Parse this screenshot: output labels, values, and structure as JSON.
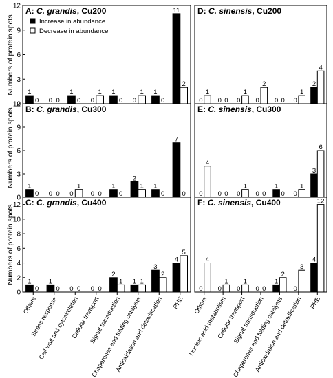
{
  "figure": {
    "ylabel": "Numbers of protein spots",
    "legend": {
      "increase": "Increase in abundance",
      "decrease": "Decrease in abundance",
      "placement": "top-left of panel A"
    },
    "colors": {
      "increase": "#000000",
      "decrease": "#ffffff",
      "axis": "#000000"
    }
  },
  "chart_data": [
    {
      "type": "bar",
      "panel": "A",
      "species": "C. grandis",
      "treatment": "Cu200",
      "categories": [
        "Others",
        "Stress response",
        "Cell wall and cytoskeleton",
        "Cellular transport",
        "Signal transduction",
        "Chaperones and folding catalysts",
        "Antioxidation and detoxification",
        "PHE"
      ],
      "series": [
        {
          "name": "Increase in abundance",
          "values": [
            1,
            0,
            1,
            0,
            1,
            0,
            1,
            11
          ]
        },
        {
          "name": "Decrease in abundance",
          "values": [
            0,
            0,
            0,
            1,
            0,
            1,
            0,
            2
          ]
        }
      ],
      "ylim": [
        0,
        12
      ],
      "yticks": [
        0,
        3,
        6,
        9,
        12
      ]
    },
    {
      "type": "bar",
      "panel": "B",
      "species": "C. grandis",
      "treatment": "Cu300",
      "categories": [
        "Others",
        "Stress response",
        "Cell wall and cytoskeleton",
        "Cellular transport",
        "Signal transduction",
        "Chaperones and folding catalysts",
        "Antioxidation and detoxification",
        "PHE"
      ],
      "series": [
        {
          "name": "Increase in abundance",
          "values": [
            1,
            0,
            0,
            0,
            1,
            2,
            1,
            7
          ]
        },
        {
          "name": "Decrease in abundance",
          "values": [
            0,
            0,
            1,
            0,
            0,
            1,
            0,
            0
          ]
        }
      ],
      "ylim": [
        0,
        12
      ],
      "yticks": [
        0,
        3,
        6,
        9,
        12
      ]
    },
    {
      "type": "bar",
      "panel": "C",
      "species": "C. grandis",
      "treatment": "Cu400",
      "categories": [
        "Others",
        "Stress response",
        "Cell wall and cytoskeleton",
        "Cellular transport",
        "Signal transduction",
        "Chaperones and folding catalysts",
        "Antioxidation and detoxification",
        "PHE"
      ],
      "series": [
        {
          "name": "Increase in abundance",
          "values": [
            1,
            1,
            0,
            0,
            2,
            1,
            3,
            4
          ]
        },
        {
          "name": "Decrease in abundance",
          "values": [
            0,
            0,
            0,
            0,
            1,
            1,
            2,
            5
          ]
        }
      ],
      "ylim": [
        0,
        13
      ],
      "yticks": [
        0,
        2,
        4,
        6,
        8,
        10,
        12
      ]
    },
    {
      "type": "bar",
      "panel": "D",
      "species": "C. sinensis",
      "treatment": "Cu200",
      "categories": [
        "Others",
        "Nucleic acid metabolism",
        "Cellular transport",
        "Signal transduction",
        "Chaperones and folding catalysts",
        "Antioxidation and detoxification",
        "PHE"
      ],
      "series": [
        {
          "name": "Increase in abundance",
          "values": [
            0,
            0,
            0,
            0,
            0,
            0,
            2
          ]
        },
        {
          "name": "Decrease in abundance",
          "values": [
            1,
            0,
            1,
            2,
            0,
            1,
            4
          ]
        }
      ],
      "ylim": [
        0,
        12
      ],
      "yticks": [
        0,
        3,
        6,
        9,
        12
      ]
    },
    {
      "type": "bar",
      "panel": "E",
      "species": "C. sinensis",
      "treatment": "Cu300",
      "categories": [
        "Others",
        "Nucleic acid metabolism",
        "Cellular transport",
        "Signal transduction",
        "Chaperones and folding catalysts",
        "Antioxidation and detoxification",
        "PHE"
      ],
      "series": [
        {
          "name": "Increase in abundance",
          "values": [
            0,
            0,
            0,
            0,
            1,
            0,
            3
          ]
        },
        {
          "name": "Decrease in abundance",
          "values": [
            4,
            0,
            1,
            0,
            0,
            1,
            6
          ]
        }
      ],
      "ylim": [
        0,
        12
      ],
      "yticks": [
        0,
        3,
        6,
        9,
        12
      ]
    },
    {
      "type": "bar",
      "panel": "F",
      "species": "C. sinensis",
      "treatment": "Cu400",
      "categories": [
        "Others",
        "Nucleic acid metabolism",
        "Cellular transport",
        "Signal transduction",
        "Chaperones and folding catalysts",
        "Antioxidation and detoxification",
        "PHE"
      ],
      "series": [
        {
          "name": "Increase in abundance",
          "values": [
            0,
            0,
            0,
            0,
            1,
            0,
            4
          ]
        },
        {
          "name": "Decrease in abundance",
          "values": [
            4,
            1,
            1,
            0,
            2,
            3,
            12
          ]
        }
      ],
      "ylim": [
        0,
        13
      ],
      "yticks": [
        0,
        2,
        4,
        6,
        8,
        10,
        12
      ]
    }
  ]
}
